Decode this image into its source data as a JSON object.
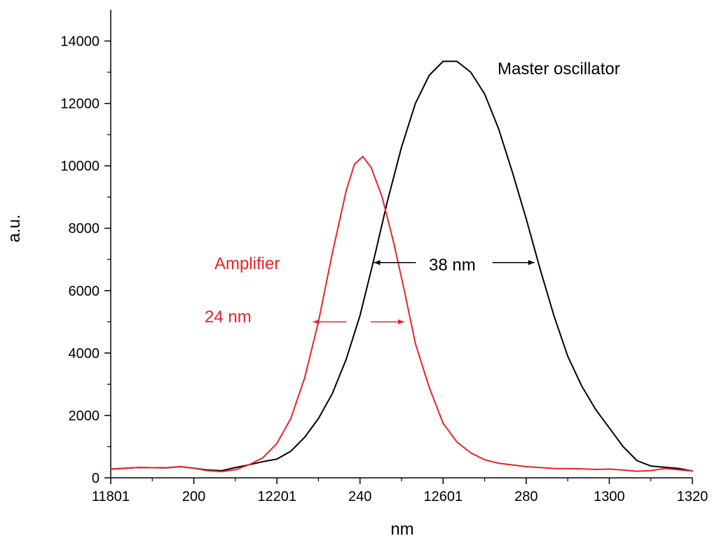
{
  "chart_data": {
    "type": "line",
    "xlabel": "nm",
    "ylabel": "a.u.",
    "xlim": [
      0,
      21
    ],
    "ylim": [
      0,
      15000
    ],
    "x_tick_positions": [
      0,
      3,
      6,
      9,
      12,
      15,
      18,
      21
    ],
    "x_tick_labels": [
      "11801",
      "200",
      "12201",
      "240",
      "12601",
      "280",
      "1300",
      "1320"
    ],
    "y_ticks": [
      0,
      2000,
      4000,
      6000,
      8000,
      10000,
      12000,
      14000
    ],
    "grid": false,
    "legend": "none",
    "series": [
      {
        "name": "Master oscillator",
        "color": "#000000",
        "points": [
          [
            0,
            280
          ],
          [
            1,
            330
          ],
          [
            2,
            320
          ],
          [
            2.5,
            360
          ],
          [
            3,
            310
          ],
          [
            3.5,
            250
          ],
          [
            4,
            230
          ],
          [
            4.5,
            330
          ],
          [
            5,
            420
          ],
          [
            5.5,
            520
          ],
          [
            6,
            600
          ],
          [
            6.5,
            850
          ],
          [
            7,
            1300
          ],
          [
            7.5,
            1900
          ],
          [
            8,
            2700
          ],
          [
            8.5,
            3800
          ],
          [
            9,
            5200
          ],
          [
            9.5,
            7000
          ],
          [
            10,
            8900
          ],
          [
            10.5,
            10600
          ],
          [
            11,
            12000
          ],
          [
            11.5,
            12900
          ],
          [
            12,
            13350
          ],
          [
            12.5,
            13350
          ],
          [
            13,
            13000
          ],
          [
            13.5,
            12300
          ],
          [
            14,
            11200
          ],
          [
            14.5,
            9800
          ],
          [
            15,
            8300
          ],
          [
            15.5,
            6700
          ],
          [
            16,
            5200
          ],
          [
            16.5,
            3900
          ],
          [
            17,
            2950
          ],
          [
            17.5,
            2200
          ],
          [
            18,
            1600
          ],
          [
            18.5,
            1000
          ],
          [
            19,
            550
          ],
          [
            19.5,
            380
          ],
          [
            20,
            340
          ],
          [
            20.5,
            300
          ],
          [
            21,
            220
          ]
        ]
      },
      {
        "name": "Amplifier",
        "color": "#e8232a",
        "points": [
          [
            0,
            280
          ],
          [
            1,
            330
          ],
          [
            2,
            320
          ],
          [
            2.5,
            360
          ],
          [
            3,
            310
          ],
          [
            3.5,
            230
          ],
          [
            4,
            200
          ],
          [
            4.5,
            260
          ],
          [
            5,
            420
          ],
          [
            5.5,
            650
          ],
          [
            6,
            1100
          ],
          [
            6.5,
            1900
          ],
          [
            7,
            3200
          ],
          [
            7.5,
            5000
          ],
          [
            8,
            7200
          ],
          [
            8.5,
            9200
          ],
          [
            8.8,
            10050
          ],
          [
            9.1,
            10300
          ],
          [
            9.4,
            9950
          ],
          [
            9.8,
            9000
          ],
          [
            10.2,
            7600
          ],
          [
            10.6,
            6000
          ],
          [
            11,
            4300
          ],
          [
            11.5,
            2900
          ],
          [
            12,
            1750
          ],
          [
            12.5,
            1150
          ],
          [
            13,
            800
          ],
          [
            13.5,
            580
          ],
          [
            14,
            470
          ],
          [
            15,
            360
          ],
          [
            16,
            300
          ],
          [
            17,
            290
          ],
          [
            17.5,
            270
          ],
          [
            18,
            280
          ],
          [
            18.5,
            250
          ],
          [
            19,
            210
          ],
          [
            19.5,
            230
          ],
          [
            20,
            300
          ],
          [
            21,
            220
          ]
        ]
      }
    ],
    "annotations": {
      "master_label": "Master oscillator",
      "amplifier_label": "Amplifier",
      "master_fwhm": "38 nm",
      "amplifier_fwhm": "24 nm"
    },
    "fwhm_markers": [
      {
        "series": 0,
        "x_left": 9.5,
        "x_right": 15.3,
        "y": 6900
      },
      {
        "series": 1,
        "x_left": 7.3,
        "x_right": 10.6,
        "y": 5000
      }
    ]
  }
}
